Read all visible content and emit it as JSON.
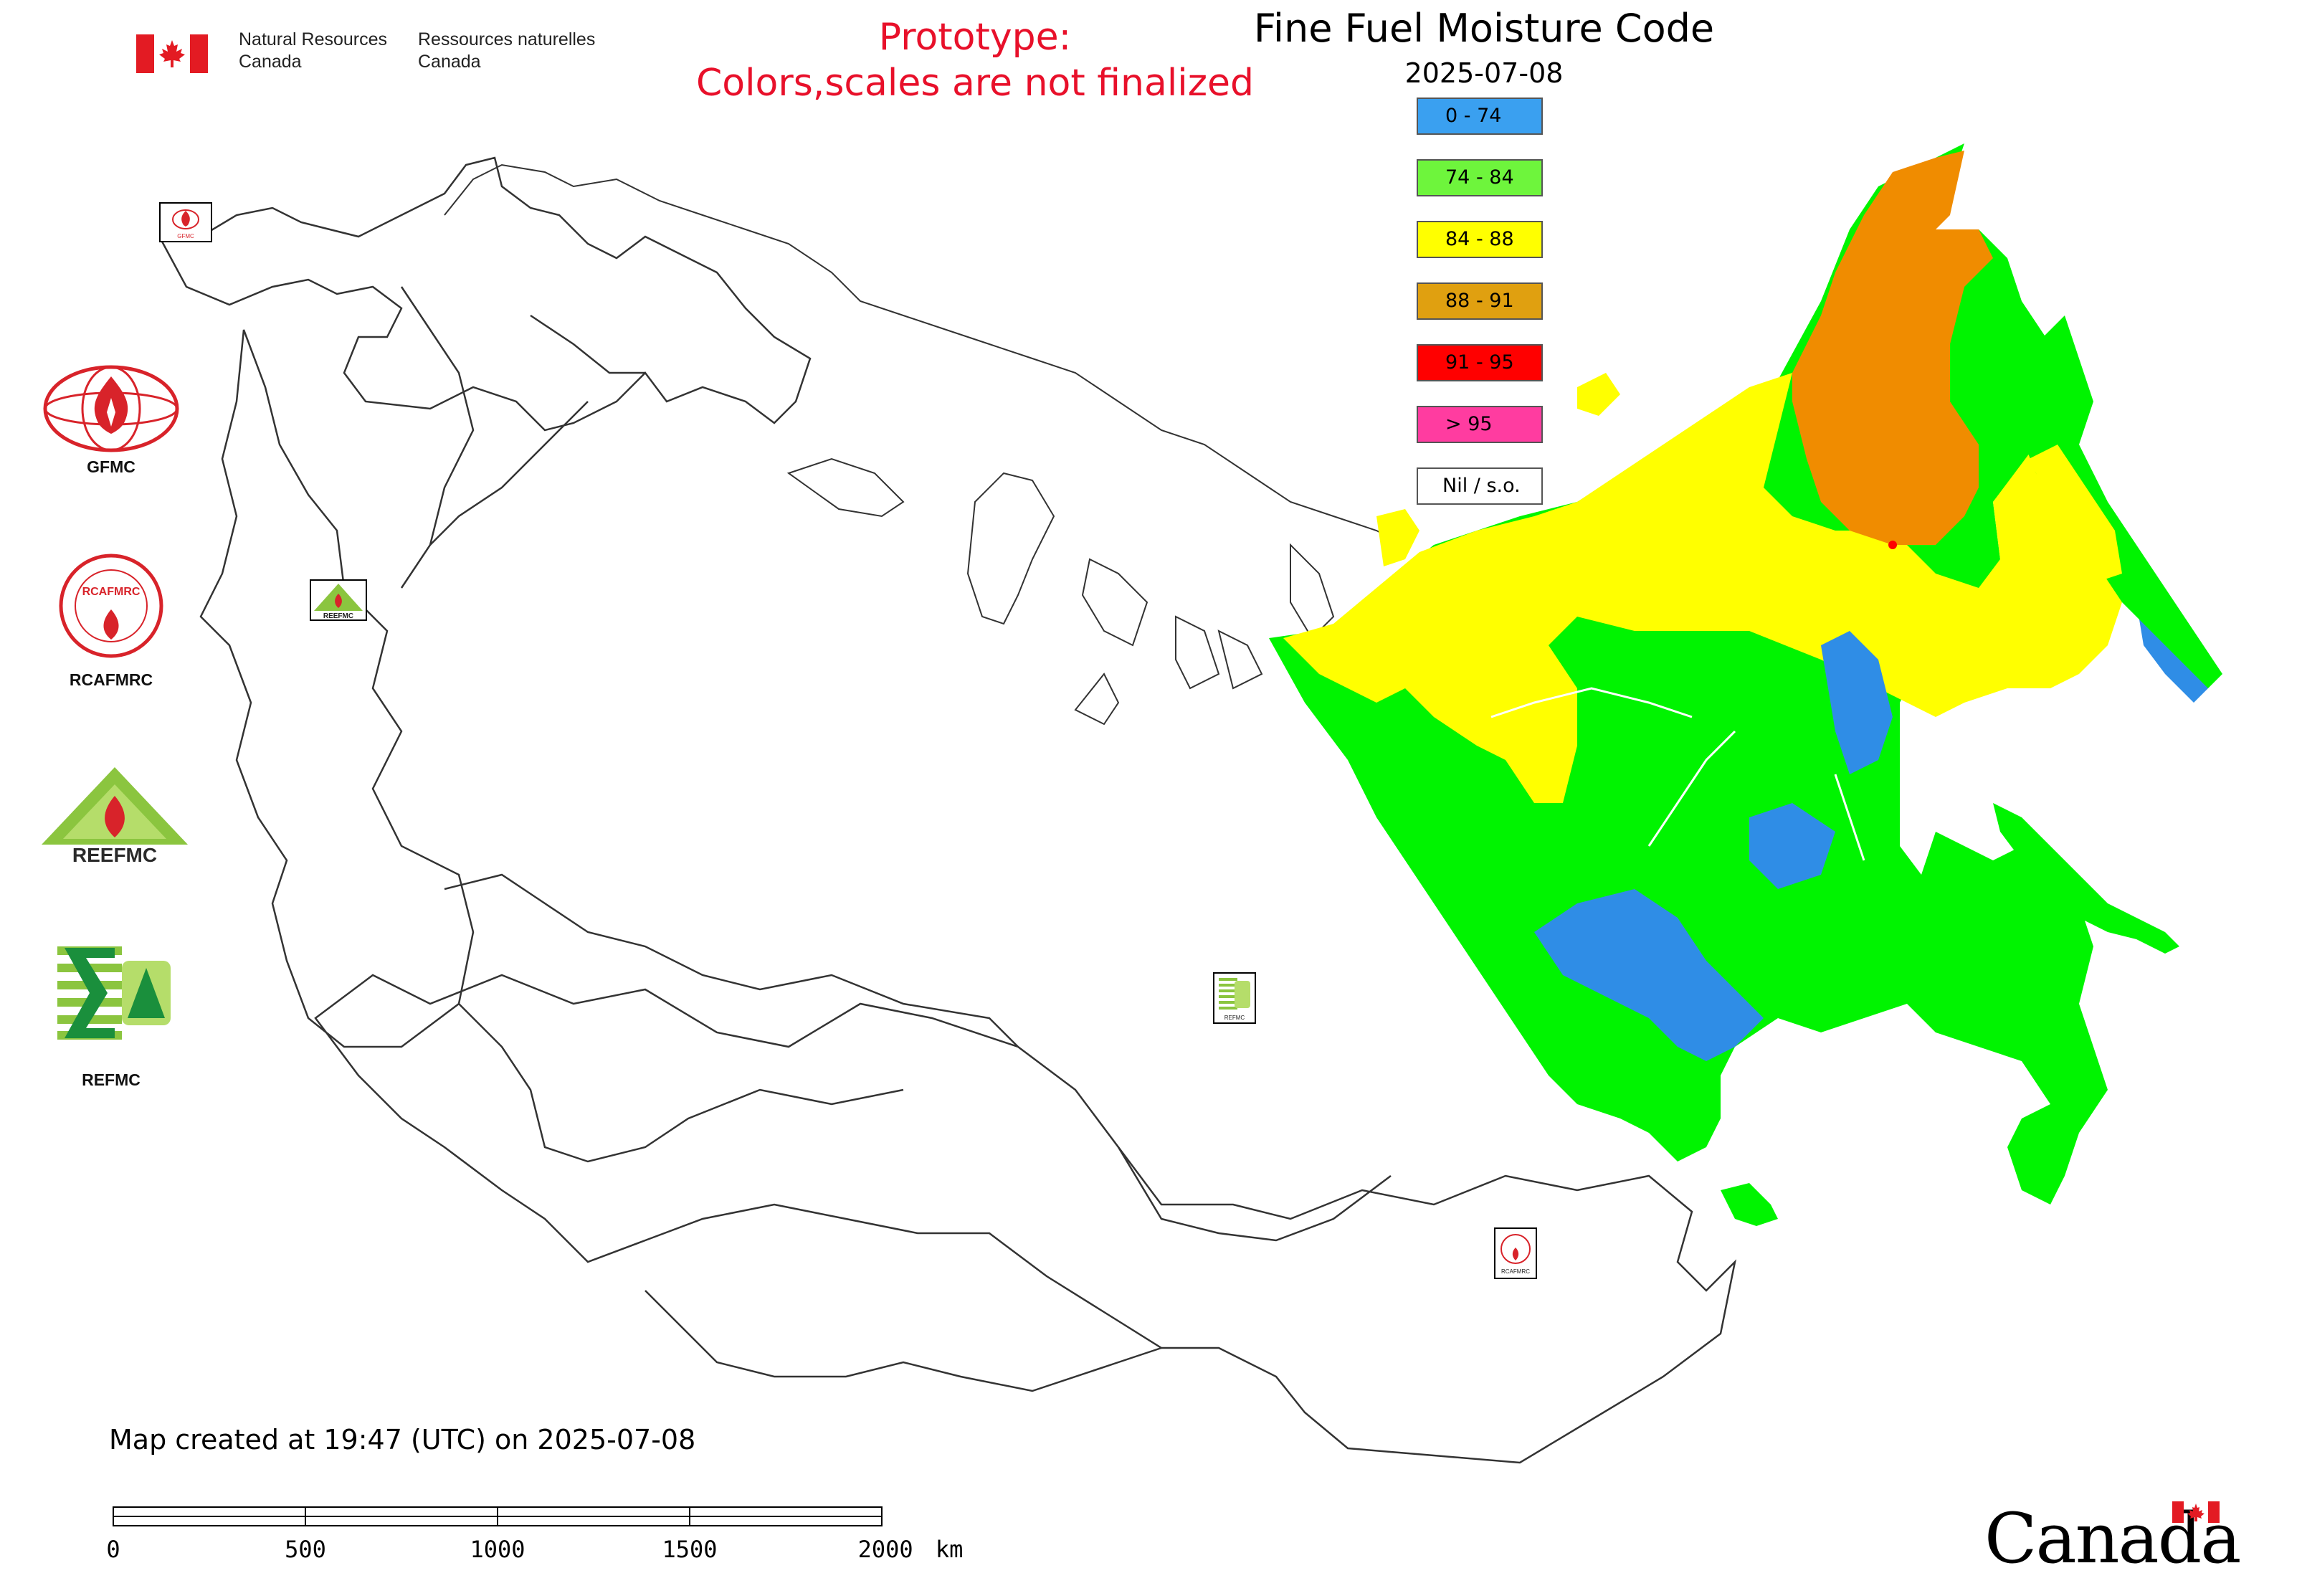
{
  "header": {
    "department_en_line1": "Natural Resources",
    "department_en_line2": "Canada",
    "department_fr_line1": "Ressources naturelles",
    "department_fr_line2": "Canada",
    "prototype_line1": "Prototype:",
    "prototype_line2": "Colors,scales are not finalized"
  },
  "map": {
    "title": "Fine Fuel Moisture Code",
    "date": "2025-07-08",
    "colors": {
      "land_outline": "#333333",
      "ocean": "#ffffff",
      "blue": "#2f8de6",
      "green": "#00f400",
      "yellow": "#ffff00",
      "orange": "#f08c00"
    }
  },
  "legend": {
    "items": [
      {
        "label": "0 - 74",
        "color": "#3aa0f0"
      },
      {
        "label": "74 - 84",
        "color": "#6ef53c"
      },
      {
        "label": "84 - 88",
        "color": "#ffff00"
      },
      {
        "label": "88 - 91",
        "color": "#e0a010"
      },
      {
        "label": "91 - 95",
        "color": "#ff0000"
      },
      {
        "label": "> 95",
        "color": "#ff3ca0"
      },
      {
        "label": "Nil / s.o.",
        "color": "#ffffff"
      }
    ]
  },
  "logos": [
    {
      "name": "GFMC",
      "caption": "GFMC"
    },
    {
      "name": "RCAFMRC",
      "caption": "RCAFMRC",
      "ring_text": "RCAFMRC"
    },
    {
      "name": "REEFMC",
      "caption": "REEFMC"
    },
    {
      "name": "REFMC",
      "caption": "REFMC"
    }
  ],
  "map_markers": [
    {
      "name": "gfmc-marker",
      "caption": "GFMC"
    },
    {
      "name": "reefmc-marker",
      "caption": "REEFMC"
    },
    {
      "name": "refmc-marker",
      "caption": "REFMC"
    },
    {
      "name": "rcafmrc-marker",
      "caption": "RCAFMRC"
    }
  ],
  "footer": {
    "created_text": "Map created at 19:47 (UTC) on 2025-07-08",
    "scale_bar": {
      "ticks": [
        "0",
        "500",
        "1000",
        "1500"
      ],
      "last_tick": "2000",
      "unit": "km"
    },
    "wordmark": "Canada"
  }
}
